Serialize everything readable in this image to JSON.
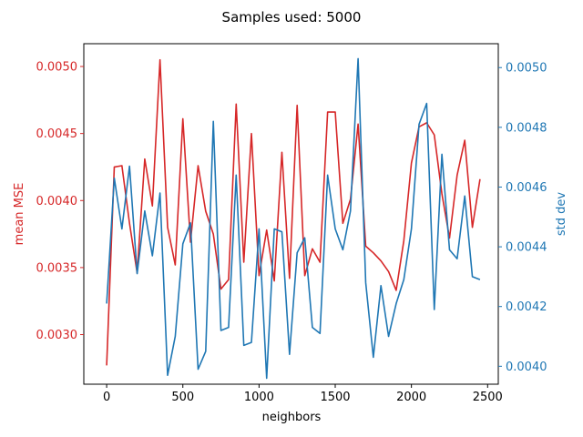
{
  "chart_data": {
    "type": "line",
    "title": "Samples used: 5000",
    "xlabel": "neighbors",
    "ylabel_left": "mean MSE",
    "ylabel_right": "std dev",
    "xlim": [
      -150,
      2570
    ],
    "ylim_left": [
      0.00263,
      0.00517
    ],
    "ylim_right": [
      0.00394,
      0.00508
    ],
    "x_ticks": [
      0,
      500,
      1000,
      1500,
      2000,
      2500
    ],
    "y_ticks_left": [
      0.003,
      0.0035,
      0.004,
      0.0045,
      0.005
    ],
    "y_ticks_right": [
      0.004,
      0.0042,
      0.0044,
      0.0046,
      0.0048,
      0.005
    ],
    "x_tick_labels": [
      "0",
      "500",
      "1000",
      "1500",
      "2000",
      "2500"
    ],
    "y_tick_labels_left": [
      "0.0030",
      "0.0035",
      "0.0040",
      "0.0045",
      "0.0050"
    ],
    "y_tick_labels_right": [
      "0.0040",
      "0.0042",
      "0.0044",
      "0.0046",
      "0.0048",
      "0.0050"
    ],
    "grid": false,
    "colors": {
      "left": "#d62728",
      "right": "#1f77b4"
    },
    "x": [
      0,
      50,
      100,
      150,
      200,
      250,
      300,
      350,
      400,
      450,
      500,
      550,
      600,
      650,
      700,
      750,
      800,
      850,
      900,
      950,
      1000,
      1050,
      1100,
      1150,
      1200,
      1250,
      1300,
      1350,
      1400,
      1450,
      1500,
      1550,
      1600,
      1650,
      1700,
      1750,
      1800,
      1850,
      1900,
      1950,
      2000,
      2050,
      2100,
      2150,
      2200,
      2250,
      2300,
      2350,
      2400,
      2450
    ],
    "series": [
      {
        "axis": "left",
        "color": "#d62728",
        "values": [
          0.00277,
          0.00425,
          0.00426,
          0.00383,
          0.00346,
          0.00431,
          0.00396,
          0.00505,
          0.0038,
          0.00352,
          0.00461,
          0.00369,
          0.00426,
          0.00392,
          0.00375,
          0.00334,
          0.00341,
          0.00472,
          0.00354,
          0.0045,
          0.00344,
          0.00378,
          0.0034,
          0.00436,
          0.00342,
          0.00471,
          0.00344,
          0.00364,
          0.00354,
          0.00466,
          0.00466,
          0.00383,
          0.00401,
          0.00457,
          0.00366,
          0.00361,
          0.00355,
          0.00347,
          0.00333,
          0.0037,
          0.00428,
          0.00455,
          0.00458,
          0.00449,
          0.00405,
          0.00372,
          0.00419,
          0.00445,
          0.0038,
          0.00416
        ]
      },
      {
        "axis": "right",
        "color": "#1f77b4",
        "values": [
          0.00421,
          0.00463,
          0.00446,
          0.00467,
          0.00431,
          0.00452,
          0.00437,
          0.00458,
          0.00397,
          0.0041,
          0.00441,
          0.00448,
          0.00399,
          0.00405,
          0.00482,
          0.00412,
          0.00413,
          0.00464,
          0.00407,
          0.00408,
          0.00446,
          0.00396,
          0.00446,
          0.00445,
          0.00404,
          0.00438,
          0.00443,
          0.00413,
          0.00411,
          0.00464,
          0.00446,
          0.00439,
          0.00452,
          0.00503,
          0.00428,
          0.00403,
          0.00427,
          0.0041,
          0.00421,
          0.00429,
          0.00446,
          0.00481,
          0.00488,
          0.00419,
          0.00471,
          0.00439,
          0.00436,
          0.00457,
          0.0043,
          0.00429
        ]
      }
    ]
  }
}
